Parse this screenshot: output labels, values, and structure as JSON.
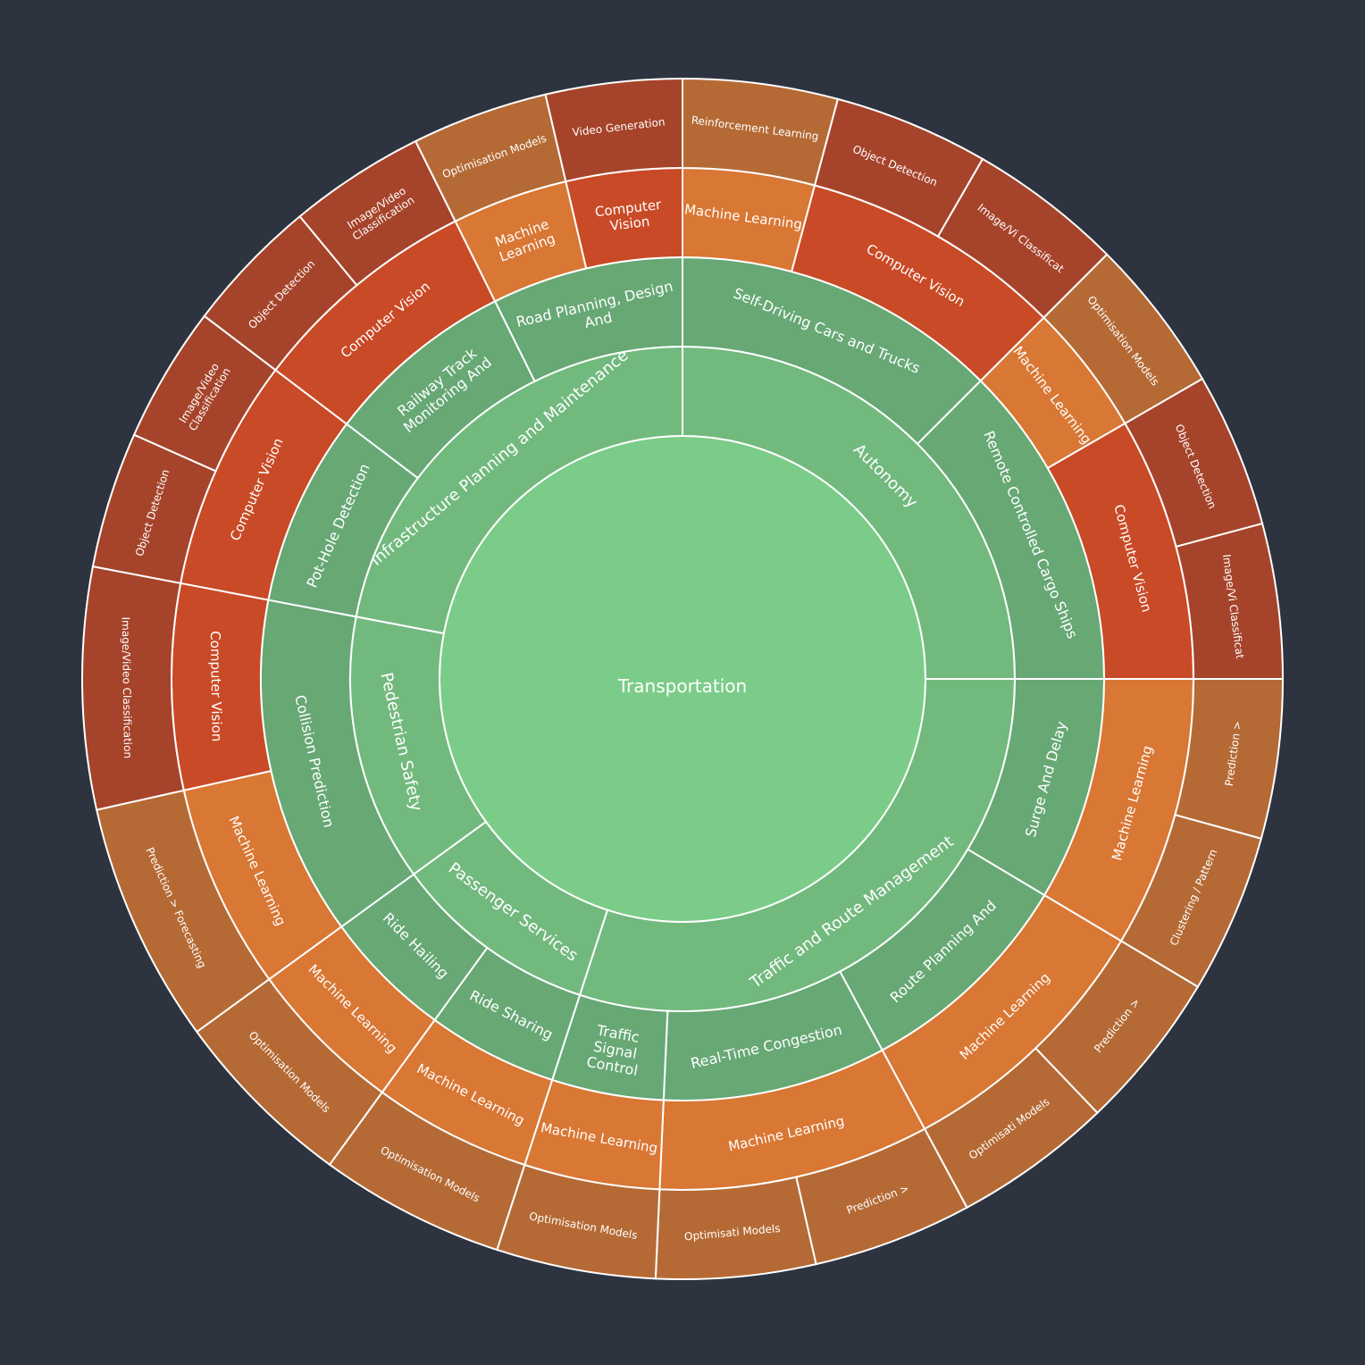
{
  "chart_data": {
    "type": "sunburst",
    "colors": {
      "background": "#2d3440",
      "level0": "#7bcc88",
      "level1": "#72b97e",
      "level2": "#67a875",
      "computer_vision": "#c94a26",
      "machine_learning": "#d97734",
      "rl_and_optimisation": "#b56a35",
      "cv_leaves": "#a6442b"
    },
    "root": {
      "name": "Transportation",
      "children": [
        {
          "name": "Autonomy",
          "children": [
            {
              "name": "Self-Driving Cars and Trucks",
              "children": [
                {
                  "name": "Machine Learning",
                  "children": [
                    {
                      "name": "Reinforcement Learning"
                    }
                  ]
                },
                {
                  "name": "Computer Vision",
                  "children": [
                    {
                      "name": "Object Detection"
                    },
                    {
                      "name": "Image/Vi Classificat"
                    }
                  ]
                }
              ]
            },
            {
              "name": "Remote Controlled Cargo Ships",
              "children": [
                {
                  "name": "Machine Learning",
                  "children": [
                    {
                      "name": "Optimisation Models"
                    }
                  ]
                },
                {
                  "name": "Computer Vision",
                  "children": [
                    {
                      "name": "Object Detection"
                    },
                    {
                      "name": "Image/Vi Classificat"
                    }
                  ]
                }
              ]
            }
          ]
        },
        {
          "name": "Traffic and Route Management",
          "children": [
            {
              "name": "Surge And Delay",
              "children": [
                {
                  "name": "Machine Learning",
                  "children": [
                    {
                      "name": "Prediction >"
                    },
                    {
                      "name": "Clustering / Pattern"
                    }
                  ]
                }
              ]
            },
            {
              "name": "Route Planning And",
              "children": [
                {
                  "name": "Machine Learning",
                  "children": [
                    {
                      "name": "Prediction >"
                    },
                    {
                      "name": "Optimisati Models"
                    }
                  ]
                }
              ]
            },
            {
              "name": "Real-Time Congestion",
              "children": [
                {
                  "name": "Machine Learning",
                  "children": [
                    {
                      "name": "Prediction >"
                    },
                    {
                      "name": "Optimisati Models"
                    }
                  ]
                }
              ]
            },
            {
              "name": "Traffic Signal Control",
              "children": [
                {
                  "name": "Machine Learning",
                  "children": [
                    {
                      "name": "Optimisation Models"
                    }
                  ]
                }
              ]
            }
          ]
        },
        {
          "name": "Passenger Services",
          "children": [
            {
              "name": "Ride Sharing",
              "children": [
                {
                  "name": "Machine Learning",
                  "children": [
                    {
                      "name": "Optimisation Models"
                    }
                  ]
                }
              ]
            },
            {
              "name": "Ride Hailing",
              "children": [
                {
                  "name": "Machine Learning",
                  "children": [
                    {
                      "name": "Optimisation Models"
                    }
                  ]
                }
              ]
            }
          ]
        },
        {
          "name": "Pedestrian Safety",
          "children": [
            {
              "name": "Collision Prediction",
              "children": [
                {
                  "name": "Machine Learning",
                  "children": [
                    {
                      "name": "Prediction > Forecasting"
                    }
                  ]
                },
                {
                  "name": "Computer Vision",
                  "children": [
                    {
                      "name": "Image/Video Classification"
                    }
                  ]
                }
              ]
            }
          ]
        },
        {
          "name": "Infrastructure Planning and Maintenance",
          "children": [
            {
              "name": "Pot-Hole Detection",
              "children": [
                {
                  "name": "Computer Vision",
                  "children": [
                    {
                      "name": "Object Detection"
                    },
                    {
                      "name": "Image/Video Classification"
                    }
                  ]
                }
              ]
            },
            {
              "name": "Railway Track Monitoring And",
              "children": [
                {
                  "name": "Computer Vision",
                  "children": [
                    {
                      "name": "Object Detection"
                    },
                    {
                      "name": "Image/Video Classification"
                    }
                  ]
                }
              ]
            },
            {
              "name": "Road Planning, Design And",
              "children": [
                {
                  "name": "Machine Learning",
                  "children": [
                    {
                      "name": "Optimisation Models"
                    }
                  ]
                },
                {
                  "name": "Computer Vision",
                  "children": [
                    {
                      "name": "Video Generation"
                    }
                  ]
                }
              ]
            }
          ]
        }
      ]
    }
  }
}
